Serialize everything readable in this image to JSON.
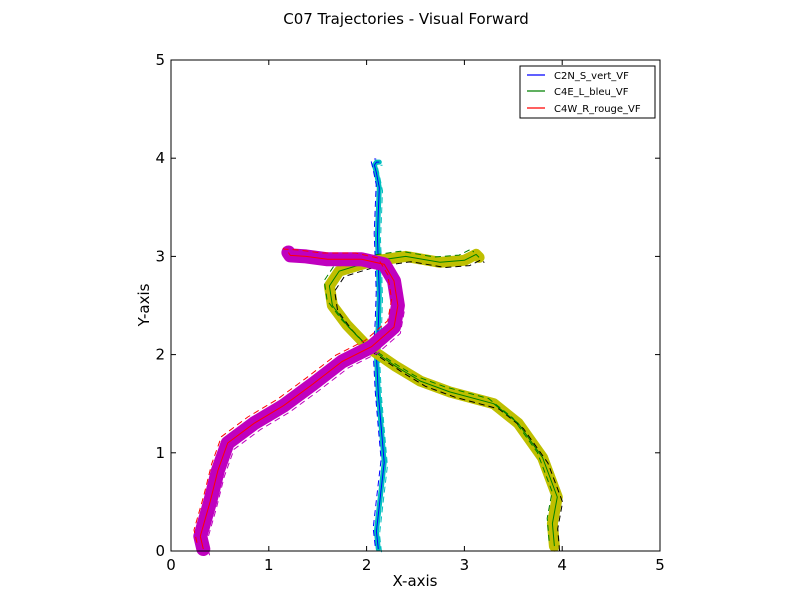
{
  "chart_data": {
    "type": "line",
    "title": "C07 Trajectories - Visual Forward",
    "xlabel": "X-axis",
    "ylabel": "Y-axis",
    "xlim": [
      0,
      5
    ],
    "ylim": [
      0,
      5
    ],
    "xticks": [
      "0",
      "1",
      "2",
      "3",
      "4",
      "5"
    ],
    "yticks": [
      "0",
      "1",
      "2",
      "3",
      "4",
      "5"
    ],
    "grid": false,
    "legend_position": "top-right",
    "series": [
      {
        "name": "C2N_S_vert_VF",
        "color": "#0000ff",
        "band_color": "#00bfbf",
        "x": [
          2.12,
          2.1,
          2.14,
          2.18,
          2.15,
          2.12,
          2.1,
          2.12,
          2.13,
          2.12,
          2.11,
          2.12,
          2.13,
          2.1,
          2.08,
          2.1,
          2.13
        ],
        "y": [
          0.02,
          0.2,
          0.55,
          0.9,
          1.25,
          1.6,
          2.0,
          2.3,
          2.6,
          2.95,
          3.2,
          3.45,
          3.7,
          3.85,
          3.93,
          3.96,
          3.96
        ]
      },
      {
        "name": "C4E_L_bleu_VF",
        "color": "#008000",
        "band_color": "#bfbf00",
        "x": [
          3.92,
          3.9,
          3.95,
          3.8,
          3.55,
          3.3,
          2.85,
          2.55,
          2.3,
          2.02,
          1.8,
          1.65,
          1.62,
          1.72,
          2.05,
          2.4,
          2.75,
          3.0,
          3.12,
          3.15
        ],
        "y": [
          0.05,
          0.28,
          0.55,
          0.95,
          1.3,
          1.5,
          1.62,
          1.73,
          1.88,
          2.07,
          2.3,
          2.5,
          2.7,
          2.85,
          2.95,
          3.0,
          2.94,
          2.96,
          3.02,
          2.99
        ]
      },
      {
        "name": "C4W_R_rouge_VF",
        "color": "#ff0000",
        "band_color": "#bf00bf",
        "x": [
          0.33,
          0.3,
          0.4,
          0.48,
          0.58,
          0.85,
          1.15,
          1.45,
          1.75,
          2.05,
          2.28,
          2.32,
          2.28,
          2.18,
          1.95,
          1.6,
          1.38,
          1.22,
          1.2
        ],
        "y": [
          0.02,
          0.15,
          0.5,
          0.82,
          1.1,
          1.3,
          1.48,
          1.7,
          1.93,
          2.08,
          2.28,
          2.5,
          2.75,
          2.92,
          2.97,
          2.97,
          3.0,
          3.01,
          3.04
        ]
      }
    ]
  }
}
